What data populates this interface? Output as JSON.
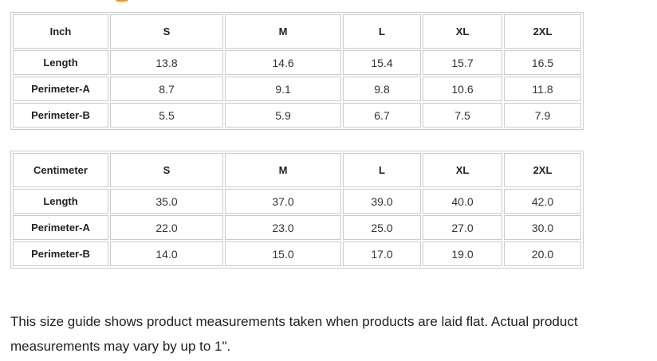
{
  "page": {
    "heading_fragment_letter": "B",
    "accent_color": "#F7941D",
    "border_color": "#cbcbcb"
  },
  "tables": [
    {
      "unit_header": "Inch",
      "size_headers": [
        "S",
        "M",
        "L",
        "XL",
        "2XL"
      ],
      "rows": [
        {
          "label": "Length",
          "values": [
            "13.8",
            "14.6",
            "15.4",
            "15.7",
            "16.5"
          ]
        },
        {
          "label": "Perimeter-A",
          "values": [
            "8.7",
            "9.1",
            "9.8",
            "10.6",
            "11.8"
          ]
        },
        {
          "label": "Perimeter-B",
          "values": [
            "5.5",
            "5.9",
            "6.7",
            "7.5",
            "7.9"
          ]
        }
      ]
    },
    {
      "unit_header": "Centimeter",
      "size_headers": [
        "S",
        "M",
        "L",
        "XL",
        "2XL"
      ],
      "rows": [
        {
          "label": "Length",
          "values": [
            "35.0",
            "37.0",
            "39.0",
            "40.0",
            "42.0"
          ]
        },
        {
          "label": "Perimeter-A",
          "values": [
            "22.0",
            "23.0",
            "25.0",
            "27.0",
            "30.0"
          ]
        },
        {
          "label": "Perimeter-B",
          "values": [
            "14.0",
            "15.0",
            "17.0",
            "19.0",
            "20.0"
          ]
        }
      ]
    }
  ],
  "footer": {
    "note": "This size guide shows product measurements taken when products are laid flat. Actual product measurements may vary by up to 1\"."
  }
}
